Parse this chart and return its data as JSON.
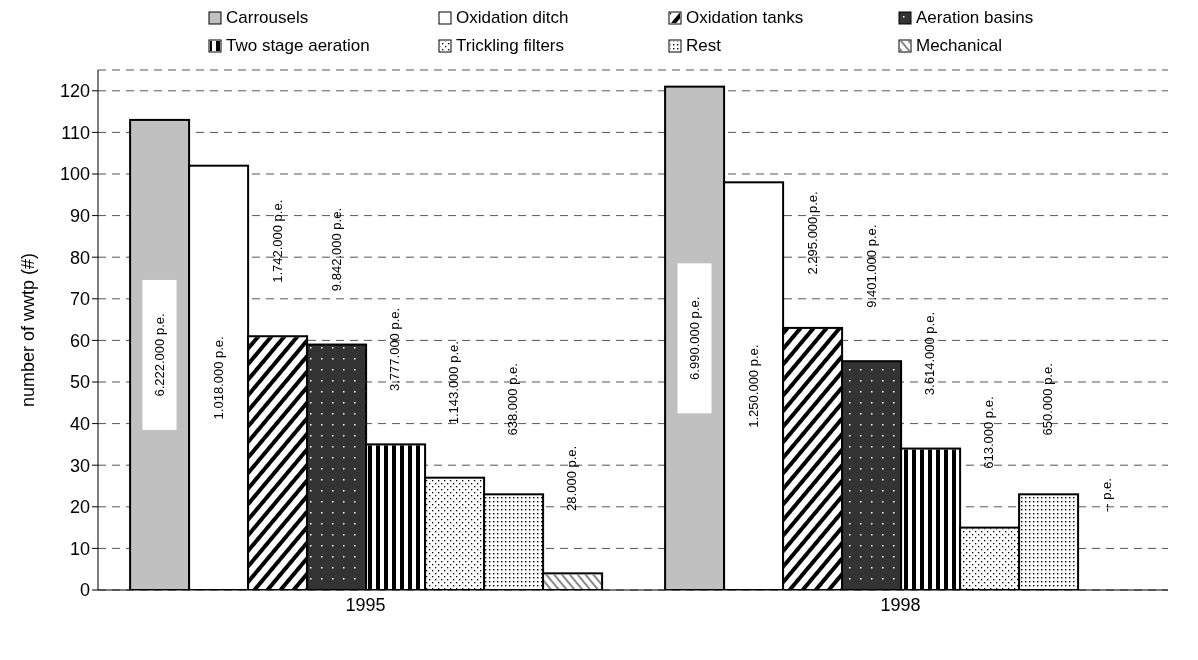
{
  "chart_data": {
    "type": "bar",
    "ylabel": "number of wwtp (#)",
    "categories": [
      "1995",
      "1998"
    ],
    "series": [
      {
        "name": "Carrousels",
        "color": "#c0c0c0",
        "values": [
          113,
          121
        ]
      },
      {
        "name": "Oxidation ditch",
        "color": "#ffffff",
        "values": [
          102,
          98
        ]
      },
      {
        "name": "Oxidation tanks",
        "color": "#ffffff",
        "values": [
          61,
          63
        ]
      },
      {
        "name": "Aeration basins",
        "color": "#333333",
        "values": [
          59,
          55
        ]
      },
      {
        "name": "Two stage aeration",
        "color": "#ffffff",
        "values": [
          35,
          34
        ]
      },
      {
        "name": "Trickling filters",
        "color": "#ffffff",
        "values": [
          27,
          15
        ]
      },
      {
        "name": "Rest",
        "color": "#ffffff",
        "values": [
          23,
          23
        ]
      },
      {
        "name": "Mechanical",
        "color": "#ffffff",
        "values": [
          4,
          null
        ]
      }
    ],
    "annotations": [
      "6.222.000 p.e.",
      "1.018.000 p.e.",
      "1.742.000 p.e.",
      "9.842.000 p.e.",
      "3.777.000 p.e.",
      "1.143.000 p.e.",
      "638.000 p.e.",
      "28.000 p.e.",
      "6.990.000 p.e.",
      "1.250.000 p.e.",
      "2.295.000 p.e.",
      "9.401.000 p.e.",
      "3.614.000 p.e.",
      "613.000 p.e.",
      "650.000 p.e.",
      "-- p.e."
    ],
    "ylim": [
      0,
      125
    ],
    "yticks": [
      0,
      10,
      20,
      30,
      40,
      50,
      60,
      70,
      80,
      90,
      100,
      110,
      120
    ],
    "grid": "y",
    "line_style": "dashed",
    "legend": "top"
  }
}
